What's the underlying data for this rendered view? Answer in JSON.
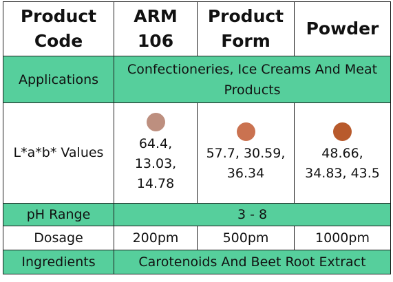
{
  "header": {
    "cells": [
      "Product\nCode",
      "ARM\n106",
      "Product\nForm",
      "Powder"
    ]
  },
  "applications": {
    "label": "Applications",
    "value": "Confectioneries, Ice Creams And Meat Products"
  },
  "lab_values": {
    "label": "L*a*b* Values",
    "items": [
      {
        "text": "64.4,\n13.03,\n14.78",
        "color": "#bd8f7f"
      },
      {
        "text": "57.7, 30.59,\n36.34",
        "color": "#ca7250"
      },
      {
        "text": "48.66,\n34.83, 43.5",
        "color": "#b85a2c"
      }
    ]
  },
  "ph_range": {
    "label": "pH Range",
    "value": "3 - 8"
  },
  "dosage": {
    "label": "Dosage",
    "values": [
      "200pm",
      "500pm",
      "1000pm"
    ]
  },
  "ingredients": {
    "label": "Ingredients",
    "value": "Carotenoids And Beet Root Extract"
  },
  "colors": {
    "row_green": "#56cf9c",
    "border": "#1a1a1a"
  }
}
